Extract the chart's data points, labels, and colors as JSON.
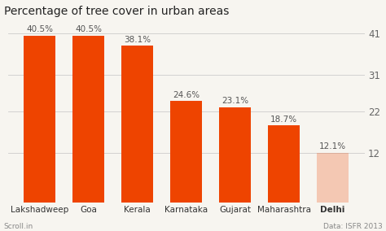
{
  "title": "Percentage of tree cover in urban areas",
  "categories": [
    "Lakshadweep",
    "Goa",
    "Kerala",
    "Karnataka",
    "Gujarat",
    "Maharashtra",
    "Delhi"
  ],
  "values": [
    40.5,
    40.5,
    38.1,
    24.6,
    23.1,
    18.7,
    12.1
  ],
  "bar_labels": [
    "40.5%",
    "40.5%",
    "38.1%",
    "24.6%",
    "23.1%",
    "18.7%",
    "12.1%"
  ],
  "bar_color": "#ee4400",
  "delhi_color": "#ee4400",
  "background_color": "#f7f5f0",
  "yticks": [
    12,
    22,
    31,
    41
  ],
  "ylim": [
    0,
    44
  ],
  "title_fontsize": 10,
  "label_fontsize": 7.5,
  "bar_label_fontsize": 7.5,
  "footer_left": "Scroll.in",
  "footer_right": "Data: ISFR 2013",
  "delhi_bar_alpha": 0.25
}
